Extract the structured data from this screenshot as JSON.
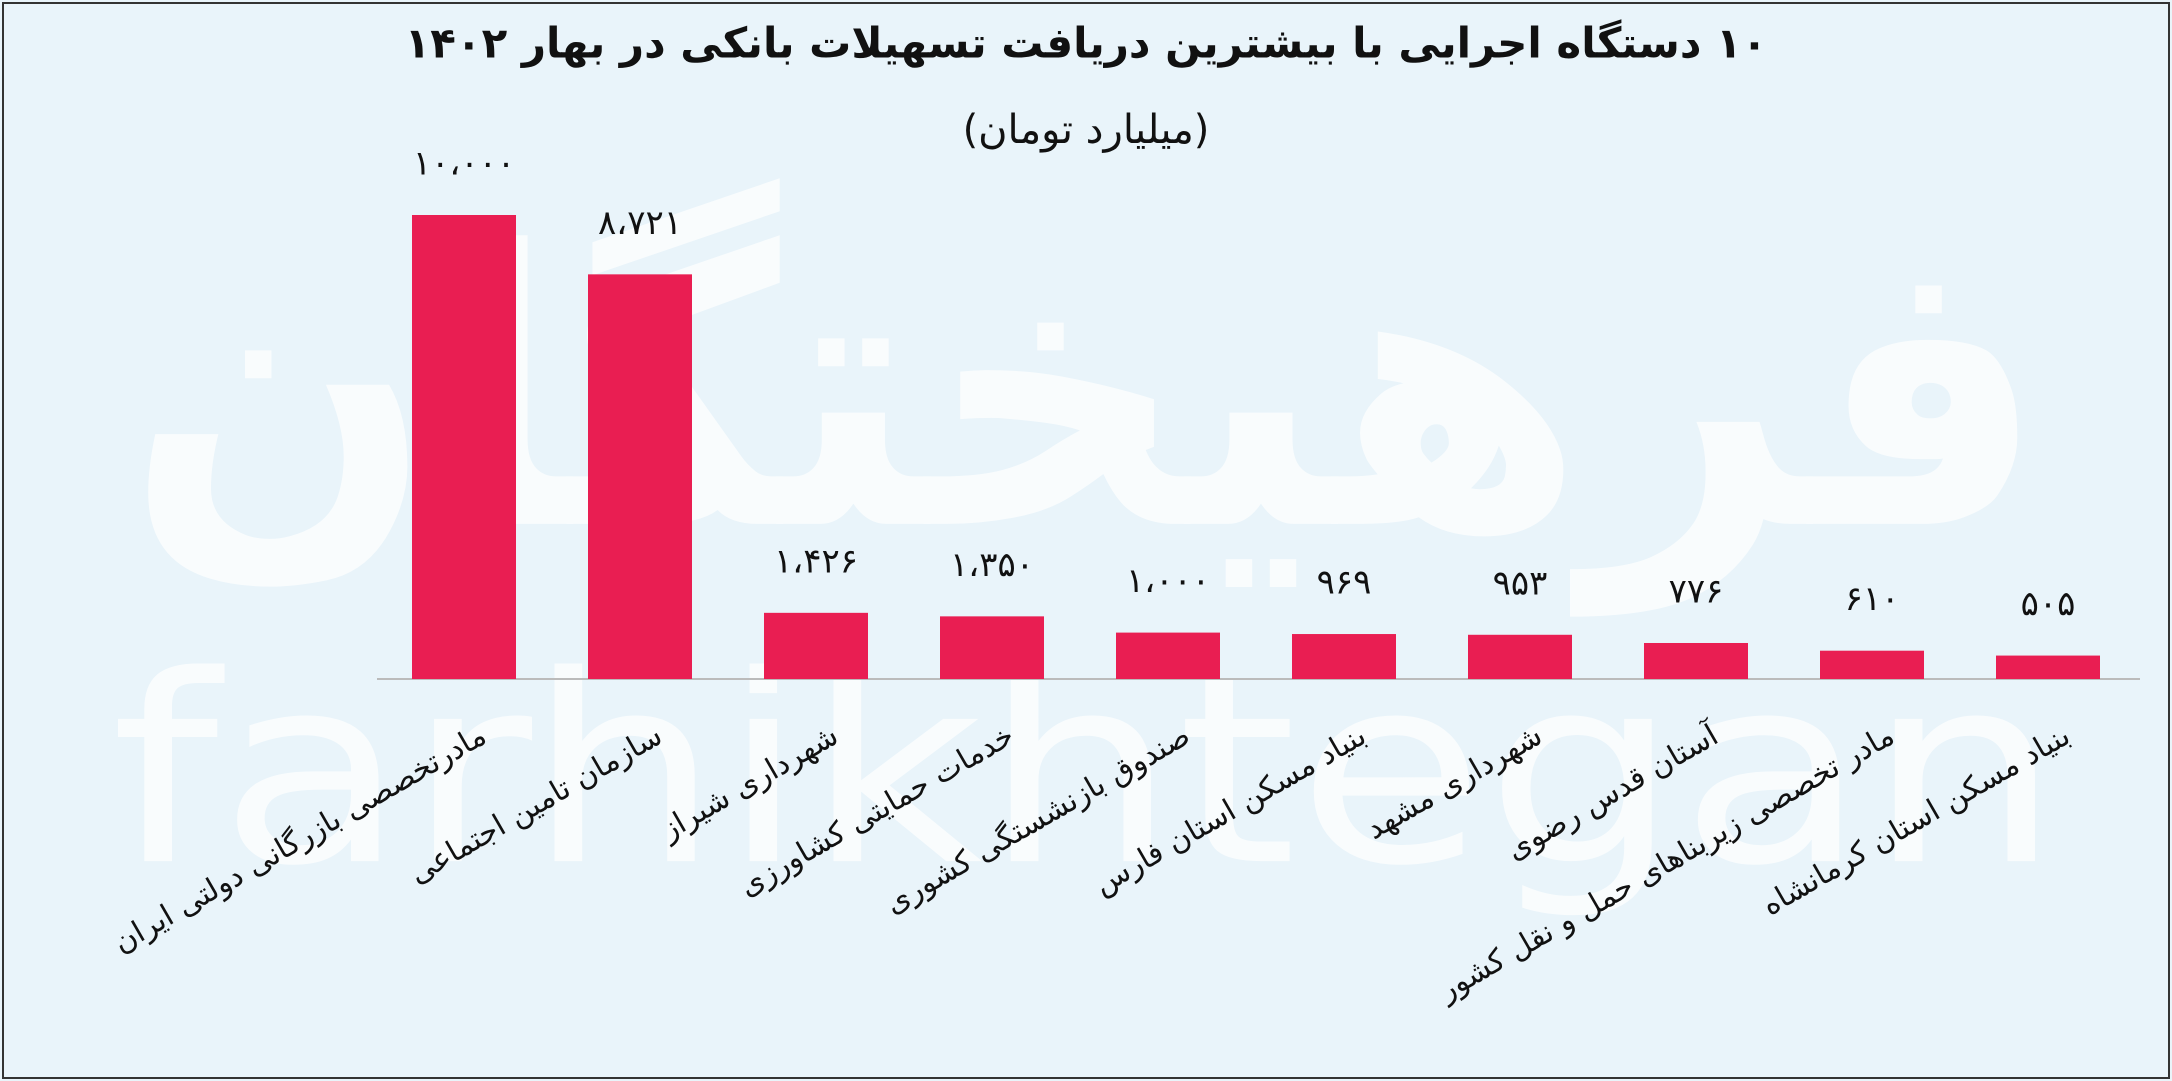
{
  "chart_data": {
    "type": "bar",
    "title": "۱۰ دستگاه اجرایی با بیشترین دریافت تسهیلات بانکی در بهار ۱۴۰۲",
    "subtitle": "(میلیارد تومان)",
    "watermark": [
      "فرهیختگان",
      "farhikhtegan"
    ],
    "categories": [
      "مادرتخصصی بازرگانی دولتی ایران",
      "سازمان تامین اجتماعی",
      "شهرداری شیراز",
      "خدمات حمایتی کشاورزی",
      "صندوق بازنشستگی کشوری",
      "بنیاد مسکن استان فارس",
      "شهرداری مشهد",
      "آستان قدس رضوی",
      "مادر تخصصی زیربناهای حمل و نقل کشور",
      "بنیاد مسکن استان کرمانشاه"
    ],
    "values": [
      10000,
      8721,
      1426,
      1350,
      1000,
      969,
      953,
      776,
      610,
      505
    ],
    "value_labels": [
      "۱۰،۰۰۰",
      "۸،۷۲۱",
      "۱،۴۲۶",
      "۱،۳۵۰",
      "۱،۰۰۰",
      "۹۶۹",
      "۹۵۳",
      "۷۷۶",
      "۶۱۰",
      "۵۰۵"
    ],
    "color": "#e91e52"
  }
}
